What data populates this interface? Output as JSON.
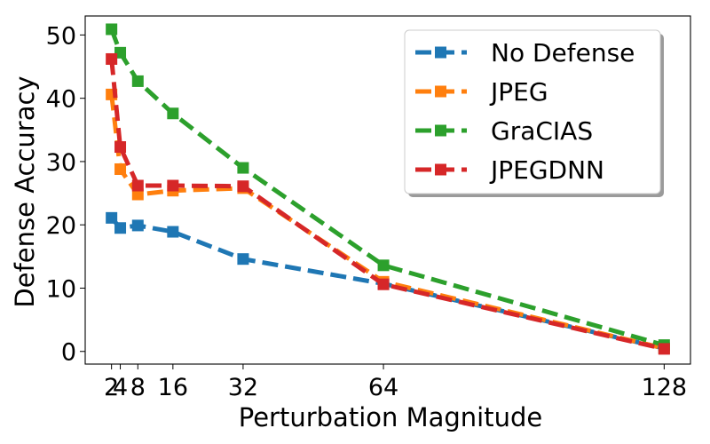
{
  "chart_data": {
    "type": "line",
    "title": "",
    "xlabel": "Perturbation Magnitude",
    "ylabel": "Defense Accuracy",
    "x": [
      2,
      4,
      8,
      16,
      32,
      64,
      128
    ],
    "xticks": [
      2,
      4,
      8,
      16,
      32,
      64,
      128
    ],
    "xtick_labels": [
      "2",
      "4",
      "8",
      "16",
      "32",
      "64",
      "128"
    ],
    "yticks": [
      0,
      10,
      20,
      30,
      40,
      50
    ],
    "xlim": [
      -4,
      134
    ],
    "ylim": [
      -2,
      53
    ],
    "legend_position": "top-right",
    "series": [
      {
        "name": "No Defense",
        "color": "#1f77b4",
        "values": [
          21.1,
          19.5,
          19.9,
          18.9,
          14.6,
          10.7,
          0.5
        ]
      },
      {
        "name": "JPEG",
        "color": "#ff7f0e",
        "values": [
          40.6,
          28.8,
          24.8,
          25.4,
          25.8,
          11.0,
          0.5
        ]
      },
      {
        "name": "GraCIAS",
        "color": "#2ca02c",
        "values": [
          50.9,
          47.2,
          42.7,
          37.6,
          29.0,
          13.6,
          1.0
        ]
      },
      {
        "name": "JPEGDNN",
        "color": "#d62728",
        "values": [
          46.2,
          32.3,
          26.2,
          26.2,
          26.1,
          10.6,
          0.4
        ]
      }
    ]
  }
}
